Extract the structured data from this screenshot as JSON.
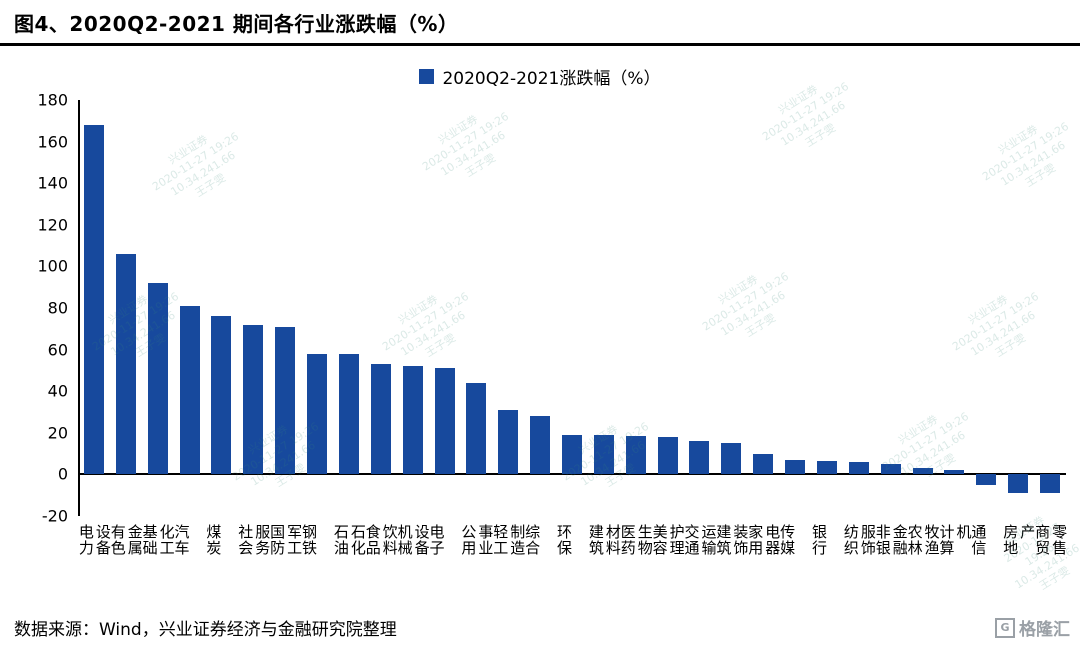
{
  "title": "图4、2020Q2-2021 期间各行业涨跌幅（%）",
  "legend_label": "2020Q2-2021涨跌幅（%）",
  "source_note": "数据来源：Wind，兴业证券经济与金融研究院整理",
  "logo_text": "格隆汇",
  "logo_icon": "G",
  "colors": {
    "bar": "#17499D",
    "axis": "#000000",
    "watermark": "#3a8a7a"
  },
  "watermark_lines": "兴业证券\n2020-11-27 19:26\n10.34.241.66\n王子雯",
  "chart_data": {
    "type": "bar",
    "title": "图4、2020Q2-2021 期间各行业涨跌幅（%）",
    "legend": [
      "2020Q2-2021涨跌幅（%）"
    ],
    "ylabel": "",
    "xlabel": "",
    "ylim": [
      -20,
      180
    ],
    "ytick_step": 20,
    "grid": false,
    "legend_position": "top-center",
    "categories": [
      "电力设备",
      "有色金属",
      "基础化工",
      "汽车",
      "煤炭",
      "社会服务",
      "国防军工",
      "钢铁",
      "石油石化",
      "食品饮料",
      "机械设备",
      "电子",
      "公用事业",
      "轻工制造",
      "综合",
      "环保",
      "建筑材料",
      "医药生物",
      "美容护理",
      "交通运输",
      "建筑装饰",
      "家用电器",
      "传媒",
      "银行",
      "纺织服饰",
      "非银金融",
      "农林牧渔",
      "计算机",
      "通信",
      "房地产",
      "商贸零售"
    ],
    "values": [
      168,
      106,
      92,
      81,
      76,
      72,
      71,
      58,
      58,
      53,
      52,
      51,
      44,
      31,
      28,
      19,
      19,
      18.5,
      18,
      16,
      15,
      10,
      7,
      6.5,
      6,
      5,
      3,
      2,
      -5,
      -9,
      -9
    ]
  }
}
